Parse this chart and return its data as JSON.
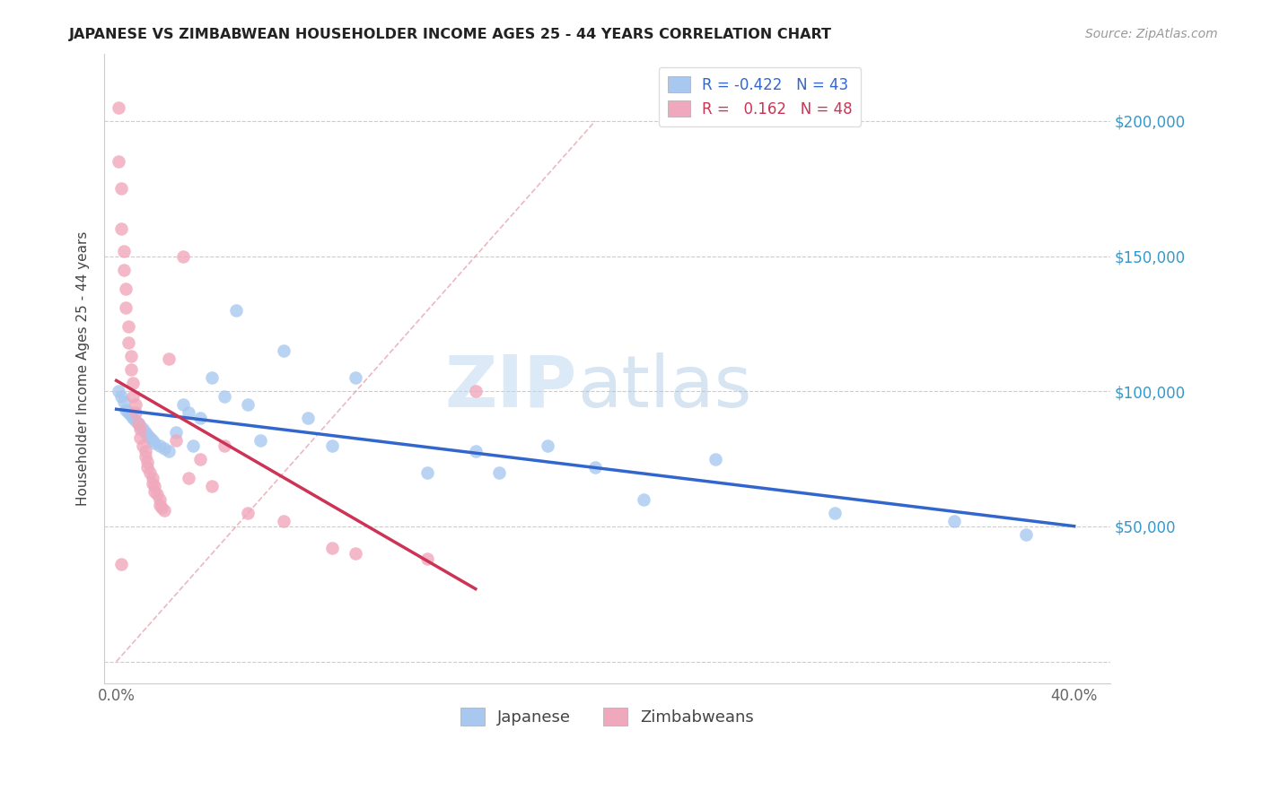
{
  "title": "JAPANESE VS ZIMBABWEAN HOUSEHOLDER INCOME AGES 25 - 44 YEARS CORRELATION CHART",
  "source": "Source: ZipAtlas.com",
  "ylabel": "Householder Income Ages 25 - 44 years",
  "watermark": "ZIPatlas",
  "legend_japanese_R": "-0.422",
  "legend_japanese_N": "43",
  "legend_zimbabwean_R": "0.162",
  "legend_zimbabwean_N": "48",
  "japanese_color": "#a8c8f0",
  "zimbabwean_color": "#f0a8bc",
  "japanese_line_color": "#3366cc",
  "zimbabwean_line_color": "#cc3355",
  "japanese_x": [
    0.001,
    0.002,
    0.003,
    0.004,
    0.005,
    0.006,
    0.007,
    0.008,
    0.009,
    0.01,
    0.011,
    0.012,
    0.013,
    0.014,
    0.015,
    0.016,
    0.018,
    0.02,
    0.022,
    0.025,
    0.028,
    0.03,
    0.032,
    0.035,
    0.04,
    0.045,
    0.05,
    0.055,
    0.06,
    0.07,
    0.08,
    0.09,
    0.1,
    0.13,
    0.15,
    0.16,
    0.18,
    0.2,
    0.22,
    0.25,
    0.3,
    0.35,
    0.38
  ],
  "japanese_y": [
    100000,
    98000,
    96000,
    93000,
    92000,
    91000,
    90000,
    89000,
    88000,
    87000,
    86000,
    85000,
    84000,
    83000,
    82000,
    81000,
    80000,
    79000,
    78000,
    85000,
    95000,
    92000,
    80000,
    90000,
    105000,
    98000,
    130000,
    95000,
    82000,
    115000,
    90000,
    80000,
    105000,
    70000,
    78000,
    70000,
    80000,
    72000,
    60000,
    75000,
    55000,
    52000,
    47000
  ],
  "zimbabwean_x": [
    0.001,
    0.001,
    0.002,
    0.002,
    0.003,
    0.003,
    0.004,
    0.004,
    0.005,
    0.005,
    0.006,
    0.006,
    0.007,
    0.007,
    0.008,
    0.008,
    0.009,
    0.01,
    0.01,
    0.011,
    0.012,
    0.012,
    0.013,
    0.013,
    0.014,
    0.015,
    0.015,
    0.016,
    0.016,
    0.017,
    0.018,
    0.018,
    0.019,
    0.02,
    0.022,
    0.025,
    0.028,
    0.03,
    0.035,
    0.04,
    0.045,
    0.055,
    0.07,
    0.09,
    0.1,
    0.13,
    0.002,
    0.15
  ],
  "zimbabwean_y": [
    205000,
    185000,
    175000,
    160000,
    152000,
    145000,
    138000,
    131000,
    124000,
    118000,
    113000,
    108000,
    103000,
    98000,
    95000,
    92000,
    88000,
    86000,
    83000,
    80000,
    78000,
    76000,
    74000,
    72000,
    70000,
    68000,
    66000,
    65000,
    63000,
    62000,
    60000,
    58000,
    57000,
    56000,
    112000,
    82000,
    150000,
    68000,
    75000,
    65000,
    80000,
    55000,
    52000,
    42000,
    40000,
    38000,
    36000,
    100000
  ],
  "ref_line_x": [
    0.0,
    0.2
  ],
  "ref_line_y": [
    0,
    200000
  ],
  "xlim": [
    -0.005,
    0.415
  ],
  "ylim": [
    -8000,
    225000
  ],
  "ytick_positions": [
    0,
    50000,
    100000,
    150000,
    200000
  ],
  "ytick_labels_right": [
    "",
    "$50,000",
    "$100,000",
    "$150,000",
    "$200,000"
  ],
  "xtick_positions": [
    0.0,
    0.05,
    0.1,
    0.15,
    0.2,
    0.25,
    0.3,
    0.35,
    0.4
  ],
  "xtick_labels": [
    "0.0%",
    "",
    "",
    "",
    "",
    "",
    "",
    "",
    "40.0%"
  ]
}
